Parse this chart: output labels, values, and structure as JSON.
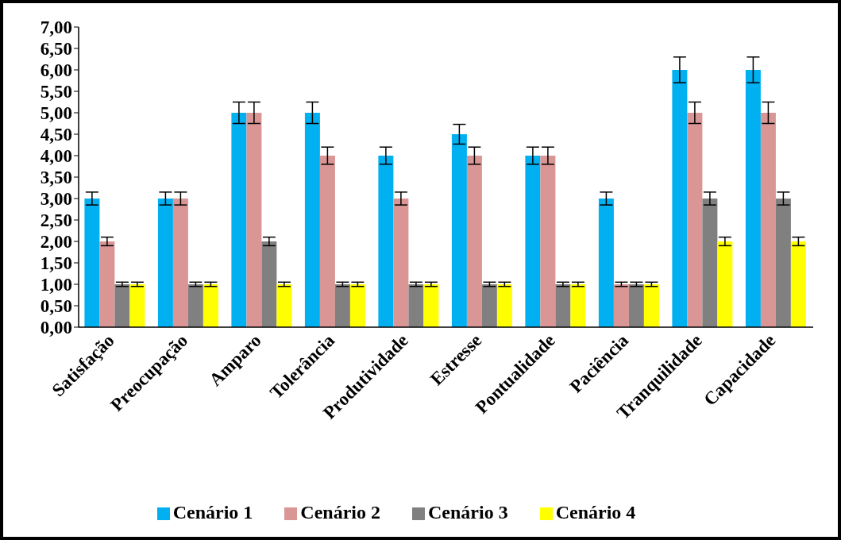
{
  "chart_data": {
    "type": "bar",
    "categories": [
      "Satisfação",
      "Preocupação",
      "Amparo",
      "Tolerância",
      "Produtividade",
      "Estresse",
      "Pontualidade",
      "Paciência",
      "Tranquilidade",
      "Capacidade"
    ],
    "series": [
      {
        "name": "Cenário 1",
        "color": "#00b0f0",
        "values": [
          3,
          3,
          5,
          5,
          4,
          4.5,
          4,
          3,
          6,
          6
        ],
        "errors": [
          0.15,
          0.15,
          0.25,
          0.25,
          0.2,
          0.23,
          0.2,
          0.15,
          0.3,
          0.3
        ]
      },
      {
        "name": "Cenário 2",
        "color": "#d99694",
        "values": [
          2,
          3,
          5,
          4,
          3,
          4,
          4,
          1,
          5,
          5
        ],
        "errors": [
          0.1,
          0.15,
          0.25,
          0.2,
          0.15,
          0.2,
          0.2,
          0.05,
          0.25,
          0.25
        ]
      },
      {
        "name": "Cenário 3",
        "color": "#808080",
        "values": [
          1,
          1,
          2,
          1,
          1,
          1,
          1,
          1,
          3,
          3
        ],
        "errors": [
          0.05,
          0.05,
          0.1,
          0.05,
          0.05,
          0.05,
          0.05,
          0.05,
          0.15,
          0.15
        ]
      },
      {
        "name": "Cenário 4",
        "color": "#ffff00",
        "values": [
          1,
          1,
          1,
          1,
          1,
          1,
          1,
          1,
          2,
          2
        ],
        "errors": [
          0.05,
          0.05,
          0.05,
          0.05,
          0.05,
          0.05,
          0.05,
          0.05,
          0.1,
          0.1
        ]
      }
    ],
    "ylim": [
      0,
      7
    ],
    "yticks": [
      {
        "value": 0,
        "label": "0,00"
      },
      {
        "value": 0.5,
        "label": "0,50"
      },
      {
        "value": 1,
        "label": "1,00"
      },
      {
        "value": 1.5,
        "label": "1,50"
      },
      {
        "value": 2,
        "label": "2,00"
      },
      {
        "value": 2.5,
        "label": "2,50"
      },
      {
        "value": 3,
        "label": "3,00"
      },
      {
        "value": 3.5,
        "label": "3,50"
      },
      {
        "value": 4,
        "label": "4,00"
      },
      {
        "value": 4.5,
        "label": "4,50"
      },
      {
        "value": 5,
        "label": "5,00"
      },
      {
        "value": 5.5,
        "label": "5,50"
      },
      {
        "value": 6,
        "label": "6,00"
      },
      {
        "value": 6.5,
        "label": "6,50"
      },
      {
        "value": 7,
        "label": "7,00"
      }
    ],
    "grid": false,
    "legend": "bottom"
  }
}
